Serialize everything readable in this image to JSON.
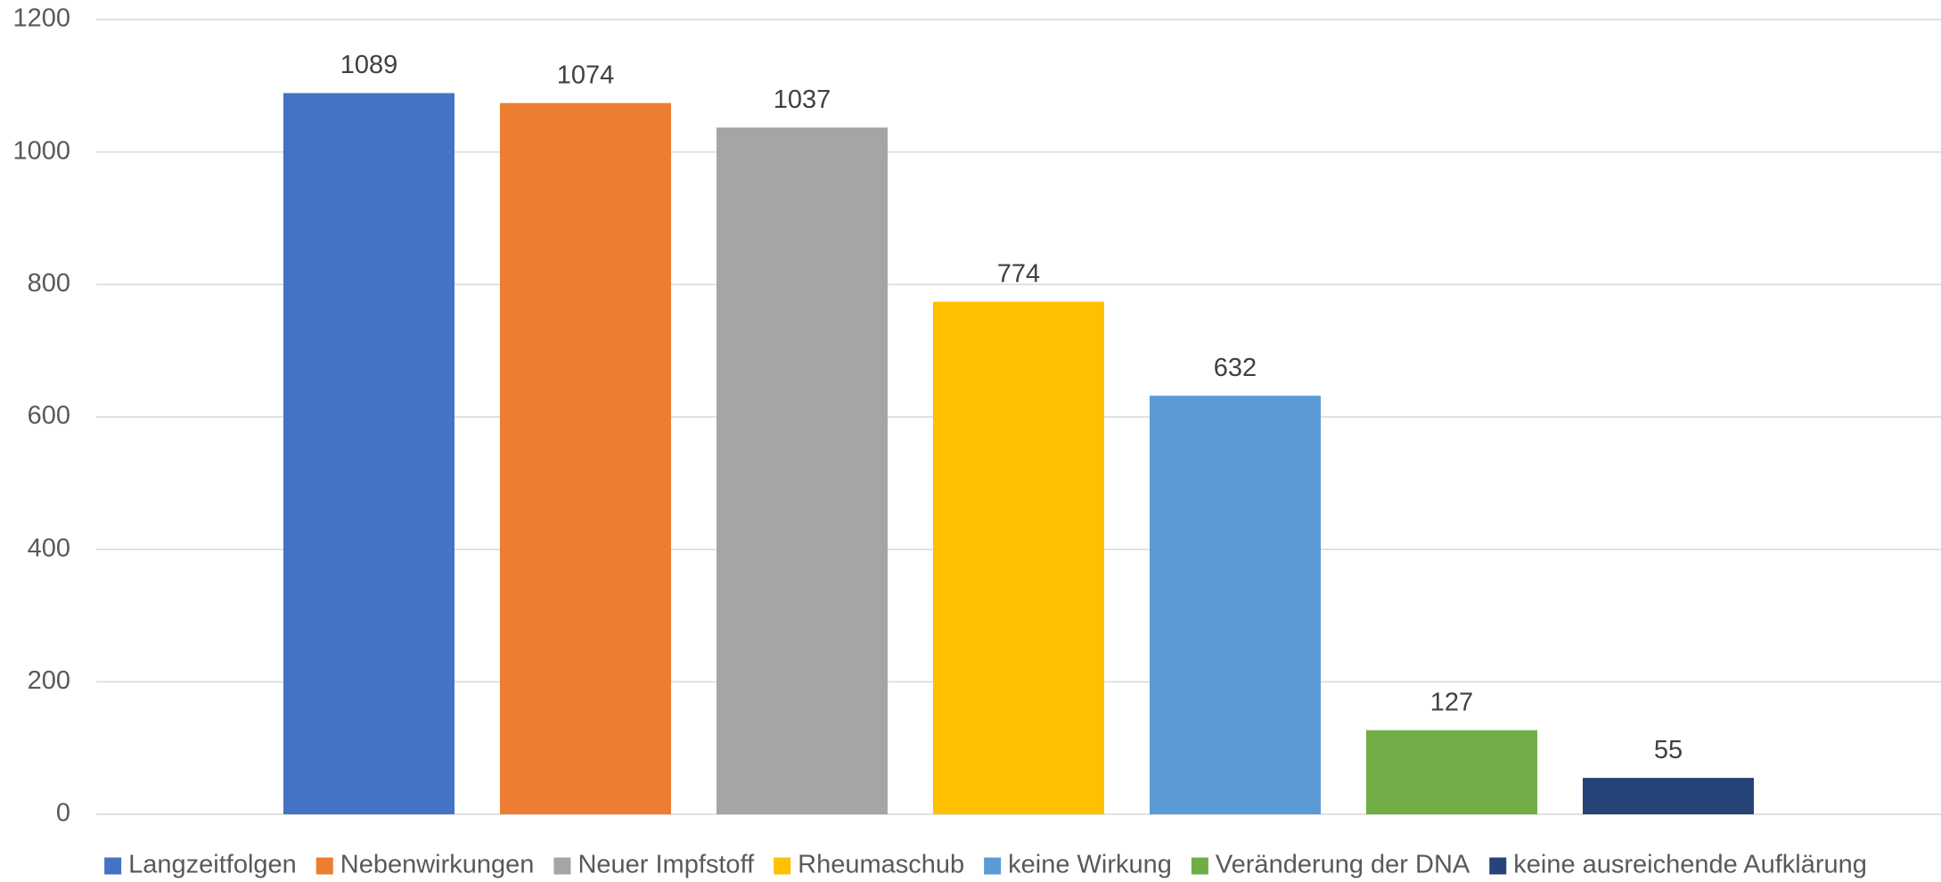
{
  "chart_data": {
    "type": "bar",
    "series": [
      {
        "name": "Langzeitfolgen",
        "color": "#4472c4",
        "values": [
          1089
        ]
      },
      {
        "name": "Nebenwirkungen",
        "color": "#ed7d31",
        "values": [
          1074
        ]
      },
      {
        "name": "Neuer Impfstoff",
        "color": "#a5a5a5",
        "values": [
          1037
        ]
      },
      {
        "name": "Rheumaschub",
        "color": "#ffc000",
        "values": [
          774
        ]
      },
      {
        "name": "keine Wirkung",
        "color": "#5b9bd5",
        "values": [
          632
        ]
      },
      {
        "name": "Veränderung der DNA",
        "color": "#70ad47",
        "values": [
          127
        ]
      },
      {
        "name": "keine ausreichende Aufklärung",
        "color": "#264478",
        "values": [
          55
        ]
      }
    ],
    "ylim": [
      0,
      1200
    ],
    "yticks": [
      0,
      200,
      400,
      600,
      800,
      1000,
      1200
    ],
    "grid": true,
    "legend": "bottom",
    "data_labels": true
  }
}
